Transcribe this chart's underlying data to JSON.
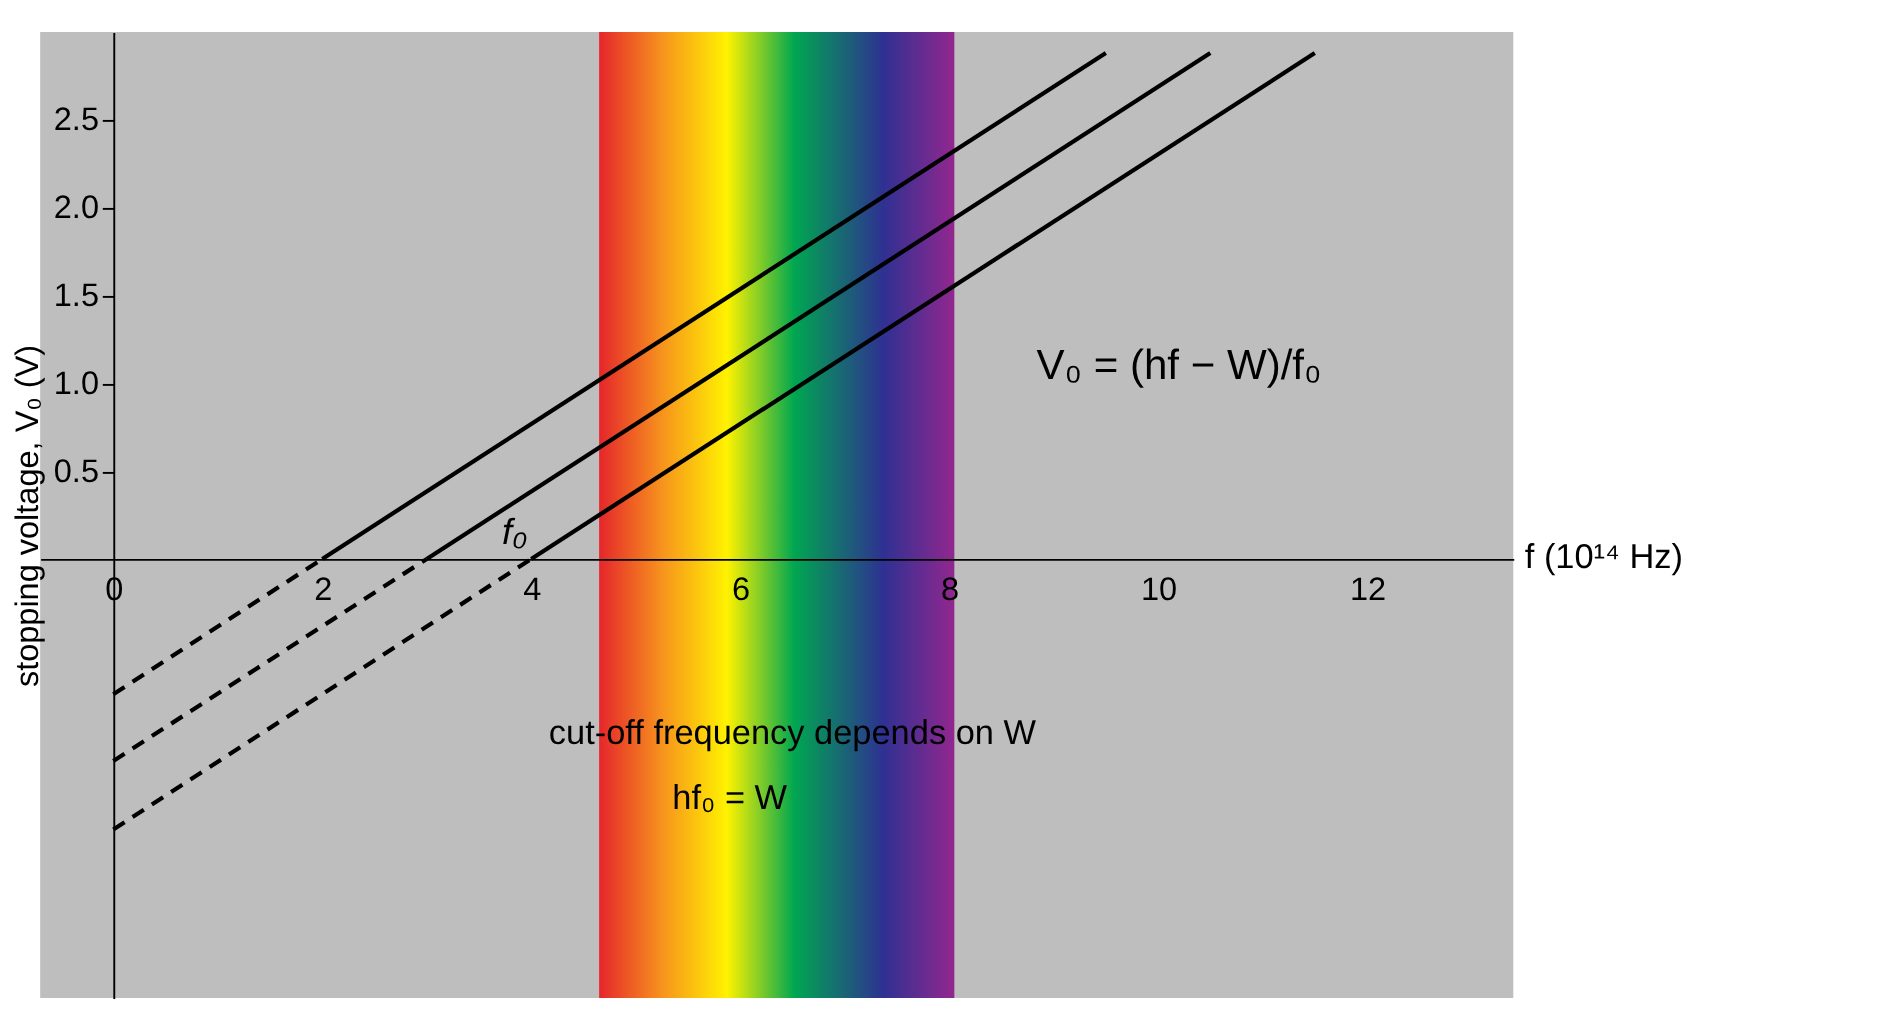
{
  "chart_data": {
    "type": "line",
    "ylabel": "stopping voltage, V₀ (V)",
    "xlabel": "f (10¹⁴ Hz)",
    "xlim": [
      -0.7,
      13.4
    ],
    "ylim": [
      -2.5,
      3.0
    ],
    "xticks": [
      0,
      2,
      4,
      6,
      8,
      10,
      12
    ],
    "yticks": [
      0.5,
      {
        "value": 1,
        "label": "1.0"
      },
      1.5,
      {
        "value": 2,
        "label": "2.0"
      },
      2.5
    ],
    "grid": false,
    "series": [
      {
        "color": "#000000",
        "line_style": "solid",
        "x": [
          2,
          9.5
        ],
        "values": [
          0,
          2.88
        ]
      },
      {
        "color": "#000000",
        "line_style": "solid",
        "x": [
          3,
          10.5
        ],
        "values": [
          0,
          2.88
        ]
      },
      {
        "color": "#000000",
        "line_style": "solid",
        "x": [
          4,
          11.5
        ],
        "values": [
          0,
          2.88
        ]
      },
      {
        "color": "#000000",
        "line_style": "dashed",
        "x": [
          0,
          2
        ],
        "values": [
          -0.77,
          0
        ]
      },
      {
        "color": "#000000",
        "line_style": "dashed",
        "x": [
          0,
          3
        ],
        "values": [
          -1.15,
          0
        ]
      },
      {
        "color": "#000000",
        "line_style": "dashed",
        "x": [
          0,
          4
        ],
        "values": [
          -1.54,
          0
        ]
      }
    ],
    "bands": [
      {
        "axis": "x",
        "from": 4.65,
        "to": 8.05
      }
    ],
    "annotations": [
      {
        "text": "f₀",
        "x": 4,
        "y": 0
      },
      "V₀ = (hf − W)/f₀",
      "cut-off frequency depends on W",
      "hf₀ = W"
    ]
  }
}
